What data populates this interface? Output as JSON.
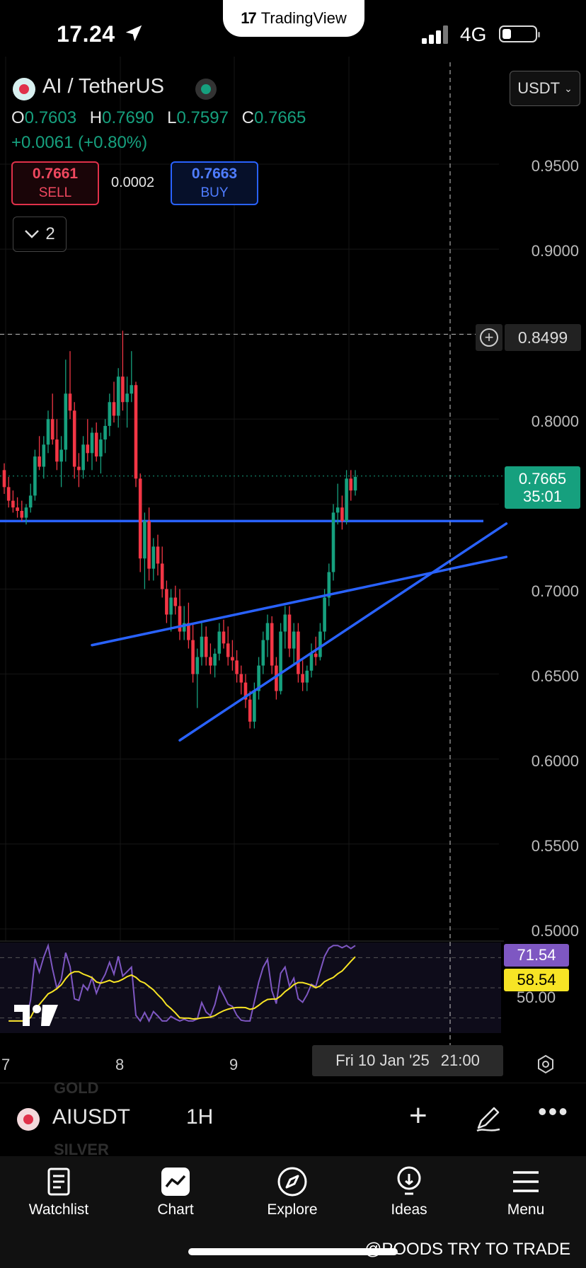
{
  "status_bar": {
    "time": "17.24",
    "carrier_badge": "TradingView",
    "network": "4G"
  },
  "header": {
    "symbol_title": "AI / TetherUS",
    "ohlc": {
      "o_label": "O",
      "o": "0.7603",
      "h_label": "H",
      "h": "0.7690",
      "l_label": "L",
      "l": "0.7597",
      "c_label": "C",
      "c": "0.7665"
    },
    "change": "+0.0061 (+0.80%)",
    "currency": "USDT",
    "sell": {
      "price": "0.7661",
      "label": "SELL"
    },
    "buy": {
      "price": "0.7663",
      "label": "BUY"
    },
    "spread": "0.0002",
    "collapse_count": "2"
  },
  "price_axis": {
    "labels": [
      "0.9500",
      "0.9000",
      "0.8000",
      "0.7000",
      "0.6500",
      "0.6000",
      "0.5500",
      "0.5000"
    ],
    "crosshair_price": "0.8499",
    "last_price": "0.7665",
    "countdown": "35:01"
  },
  "rsi": {
    "value": "71.54",
    "ma": "58.54",
    "scale_label": "50.00"
  },
  "time_axis": {
    "labels": [
      "7",
      "8",
      "9"
    ],
    "crosshair_date": "Fri 10 Jan '25",
    "crosshair_time": "21:00"
  },
  "symbol_bar": {
    "ghost_top": "GOLD",
    "ghost_bottom": "SILVER",
    "symbol": "AIUSDT",
    "interval": "1H"
  },
  "nav": {
    "watchlist": "Watchlist",
    "chart": "Chart",
    "explore": "Explore",
    "ideas": "Ideas",
    "menu": "Menu"
  },
  "watermark": "@POODS TRY TO TRADE",
  "colors": {
    "up": "#16a07e",
    "down": "#f23645",
    "trendline": "#2962ff",
    "rsi": "#7e57c2",
    "rsi_ma": "#f7e425"
  },
  "chart_data": {
    "type": "candlestick",
    "interval": "1H",
    "x_labels": [
      "7",
      "8",
      "9"
    ],
    "ylim": [
      0.48,
      0.98
    ],
    "y_ticks": [
      0.95,
      0.9,
      0.85,
      0.8,
      0.75,
      0.7,
      0.65,
      0.6,
      0.55,
      0.5
    ],
    "ohlc": [
      [
        0.77,
        0.774,
        0.756,
        0.76
      ],
      [
        0.76,
        0.766,
        0.748,
        0.752
      ],
      [
        0.752,
        0.758,
        0.745,
        0.748
      ],
      [
        0.748,
        0.754,
        0.742,
        0.746
      ],
      [
        0.746,
        0.752,
        0.74,
        0.742
      ],
      [
        0.742,
        0.75,
        0.738,
        0.748
      ],
      [
        0.748,
        0.762,
        0.745,
        0.755
      ],
      [
        0.755,
        0.782,
        0.752,
        0.778
      ],
      [
        0.778,
        0.79,
        0.77,
        0.772
      ],
      [
        0.772,
        0.79,
        0.765,
        0.785
      ],
      [
        0.785,
        0.805,
        0.78,
        0.8
      ],
      [
        0.8,
        0.815,
        0.785,
        0.788
      ],
      [
        0.788,
        0.8,
        0.77,
        0.775
      ],
      [
        0.775,
        0.79,
        0.76,
        0.782
      ],
      [
        0.782,
        0.835,
        0.775,
        0.815
      ],
      [
        0.815,
        0.84,
        0.8,
        0.805
      ],
      [
        0.805,
        0.81,
        0.765,
        0.772
      ],
      [
        0.772,
        0.78,
        0.76,
        0.77
      ],
      [
        0.77,
        0.79,
        0.765,
        0.785
      ],
      [
        0.785,
        0.8,
        0.775,
        0.78
      ],
      [
        0.78,
        0.795,
        0.77,
        0.792
      ],
      [
        0.792,
        0.798,
        0.775,
        0.778
      ],
      [
        0.778,
        0.792,
        0.768,
        0.788
      ],
      [
        0.788,
        0.8,
        0.78,
        0.796
      ],
      [
        0.796,
        0.815,
        0.79,
        0.81
      ],
      [
        0.81,
        0.822,
        0.798,
        0.802
      ],
      [
        0.802,
        0.83,
        0.795,
        0.825
      ],
      [
        0.825,
        0.852,
        0.805,
        0.81
      ],
      [
        0.81,
        0.825,
        0.795,
        0.815
      ],
      [
        0.815,
        0.84,
        0.81,
        0.82
      ],
      [
        0.82,
        0.822,
        0.76,
        0.765
      ],
      [
        0.765,
        0.768,
        0.71,
        0.718
      ],
      [
        0.718,
        0.745,
        0.7,
        0.74
      ],
      [
        0.74,
        0.748,
        0.705,
        0.712
      ],
      [
        0.712,
        0.73,
        0.705,
        0.725
      ],
      [
        0.725,
        0.732,
        0.708,
        0.715
      ],
      [
        0.715,
        0.725,
        0.695,
        0.7
      ],
      [
        0.7,
        0.705,
        0.68,
        0.685
      ],
      [
        0.685,
        0.7,
        0.675,
        0.695
      ],
      [
        0.695,
        0.702,
        0.685,
        0.69
      ],
      [
        0.69,
        0.7,
        0.67,
        0.675
      ],
      [
        0.675,
        0.69,
        0.67,
        0.68
      ],
      [
        0.68,
        0.692,
        0.665,
        0.67
      ],
      [
        0.67,
        0.68,
        0.645,
        0.65
      ],
      [
        0.65,
        0.665,
        0.63,
        0.66
      ],
      [
        0.66,
        0.68,
        0.655,
        0.672
      ],
      [
        0.672,
        0.678,
        0.655,
        0.66
      ],
      [
        0.66,
        0.668,
        0.65,
        0.655
      ],
      [
        0.655,
        0.665,
        0.648,
        0.662
      ],
      [
        0.662,
        0.68,
        0.658,
        0.675
      ],
      [
        0.675,
        0.682,
        0.665,
        0.668
      ],
      [
        0.668,
        0.678,
        0.655,
        0.66
      ],
      [
        0.66,
        0.67,
        0.652,
        0.658
      ],
      [
        0.658,
        0.664,
        0.645,
        0.65
      ],
      [
        0.65,
        0.655,
        0.638,
        0.645
      ],
      [
        0.645,
        0.65,
        0.63,
        0.635
      ],
      [
        0.635,
        0.64,
        0.618,
        0.622
      ],
      [
        0.622,
        0.645,
        0.618,
        0.64
      ],
      [
        0.64,
        0.66,
        0.635,
        0.655
      ],
      [
        0.655,
        0.675,
        0.65,
        0.67
      ],
      [
        0.67,
        0.685,
        0.66,
        0.68
      ],
      [
        0.68,
        0.684,
        0.65,
        0.655
      ],
      [
        0.655,
        0.66,
        0.635,
        0.64
      ],
      [
        0.64,
        0.68,
        0.638,
        0.675
      ],
      [
        0.675,
        0.69,
        0.665,
        0.685
      ],
      [
        0.685,
        0.69,
        0.66,
        0.665
      ],
      [
        0.665,
        0.68,
        0.655,
        0.675
      ],
      [
        0.675,
        0.68,
        0.645,
        0.65
      ],
      [
        0.65,
        0.658,
        0.64,
        0.645
      ],
      [
        0.645,
        0.655,
        0.64,
        0.652
      ],
      [
        0.652,
        0.668,
        0.648,
        0.662
      ],
      [
        0.662,
        0.672,
        0.655,
        0.66
      ],
      [
        0.66,
        0.68,
        0.658,
        0.675
      ],
      [
        0.675,
        0.7,
        0.67,
        0.695
      ],
      [
        0.695,
        0.715,
        0.69,
        0.71
      ],
      [
        0.71,
        0.75,
        0.705,
        0.745
      ],
      [
        0.745,
        0.762,
        0.738,
        0.748
      ],
      [
        0.748,
        0.755,
        0.735,
        0.74
      ],
      [
        0.74,
        0.77,
        0.738,
        0.765
      ],
      [
        0.765,
        0.77,
        0.752,
        0.758
      ],
      [
        0.758,
        0.77,
        0.755,
        0.766
      ]
    ],
    "horizontal_line": 0.74,
    "crosshair_price": 0.8499,
    "last_price": 0.7665,
    "trendlines": [
      {
        "from": [
          20,
          0.667
        ],
        "to": [
          87,
          0.704
        ]
      },
      {
        "from": [
          40,
          0.611
        ],
        "to": [
          87,
          0.692
        ]
      }
    ],
    "rsi": {
      "value": 71.54,
      "ma": 58.54,
      "levels": [
        70,
        50,
        30
      ]
    }
  }
}
